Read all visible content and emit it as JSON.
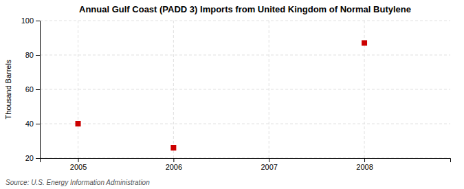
{
  "chart_data": {
    "type": "scatter",
    "title": "Annual Gulf Coast (PADD 3) Imports from United Kingdom of Normal Butylene",
    "ylabel": "Thousand Barrels",
    "annotations": [
      "Source: U.S. Energy Information Administration"
    ],
    "x": [
      2005,
      2006,
      2008
    ],
    "values": [
      40,
      26,
      87
    ],
    "color": "#cc0000",
    "marker": "square",
    "xlim": [
      2004.6,
      2008.9
    ],
    "xticks": [
      2005,
      2006,
      2007,
      2008
    ],
    "ylim": [
      20,
      100
    ],
    "yticks": [
      20,
      40,
      60,
      80,
      100
    ],
    "grid": true
  }
}
